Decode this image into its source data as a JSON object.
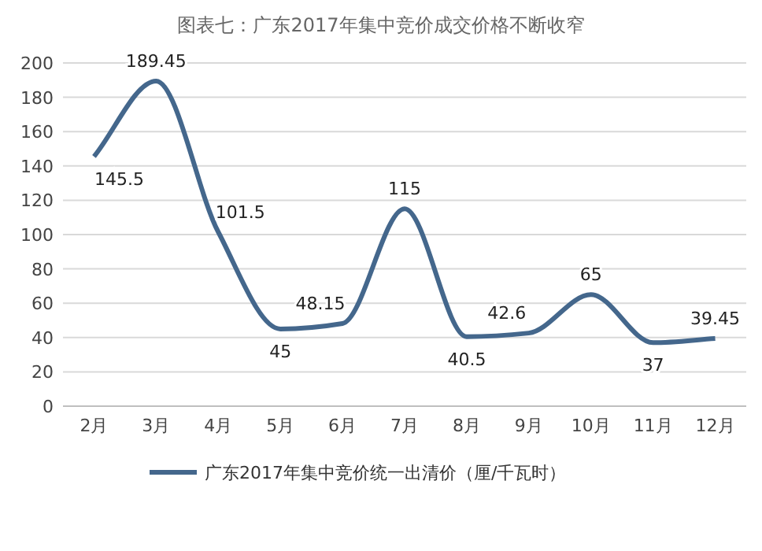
{
  "chart_data": {
    "type": "line",
    "title": "图表七：广东2017年集中竞价成交价格不断收窄",
    "categories": [
      "2月",
      "3月",
      "4月",
      "5月",
      "6月",
      "7月",
      "8月",
      "9月",
      "10月",
      "11月",
      "12月"
    ],
    "series": [
      {
        "name": "广东2017年集中竞价统一出清价（厘/千瓦时）",
        "color": "#44678c",
        "values": [
          145.5,
          189.45,
          101.5,
          45,
          48.15,
          115,
          40.5,
          42.6,
          65,
          37,
          39.45
        ]
      }
    ],
    "ylim": [
      0,
      200
    ],
    "yticks": [
      0,
      20,
      40,
      60,
      80,
      100,
      120,
      140,
      160,
      180,
      200
    ],
    "grid": "y",
    "legend": "bottom",
    "data_labels": true
  }
}
